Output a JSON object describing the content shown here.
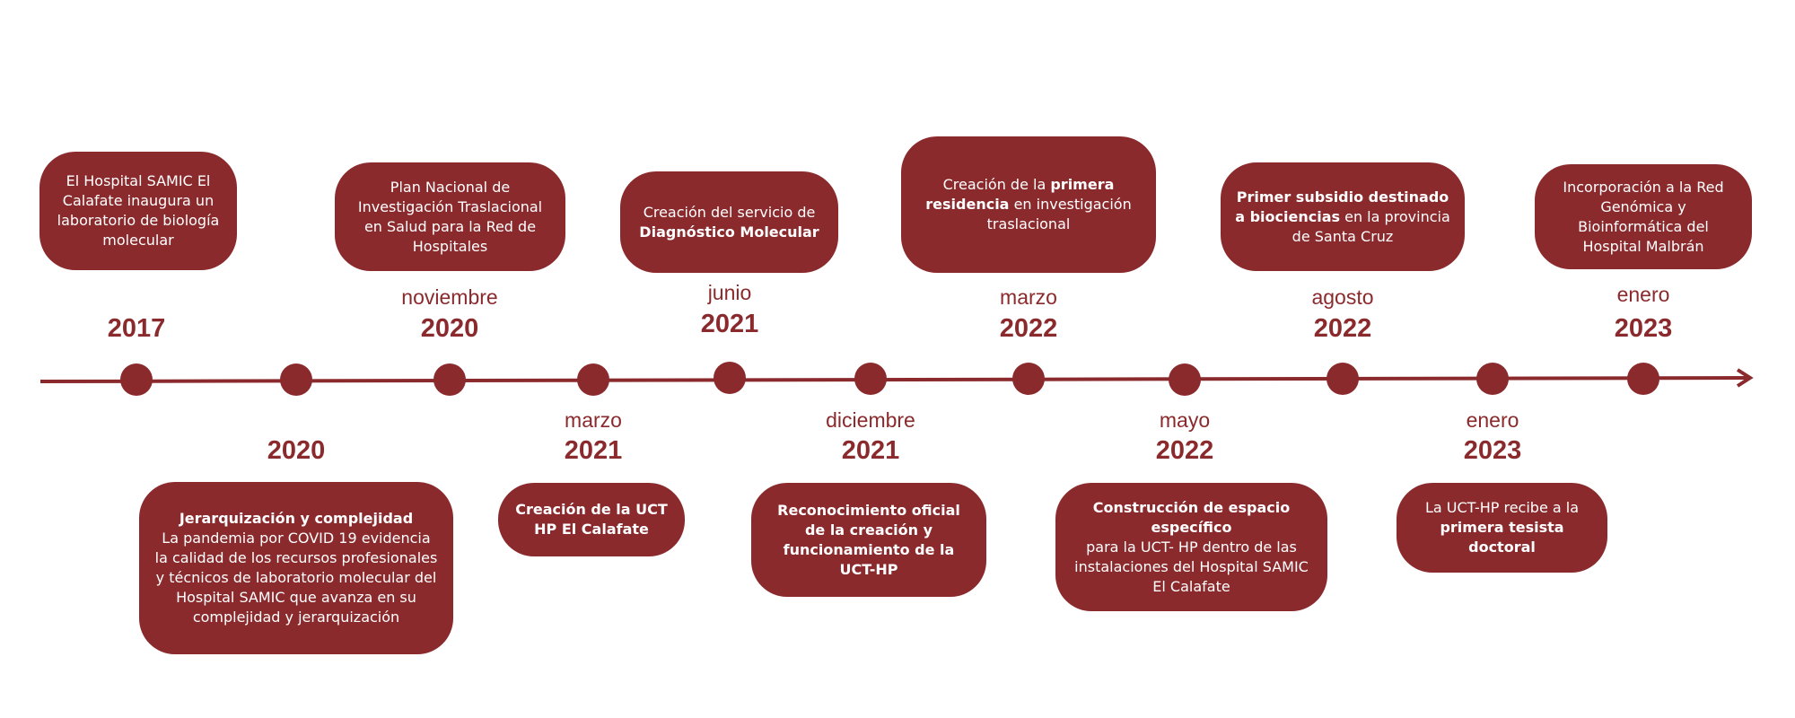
{
  "colors": {
    "accent": "#8b2a2d",
    "background": "#ffffff",
    "card_text": "#ffffff"
  },
  "events": [
    {
      "month": "",
      "year": "2017",
      "text": [
        {
          "t": "El Hospital SAMIC El Calafate inaugura un laboratorio de biología molecular",
          "b": false
        }
      ]
    },
    {
      "month": "",
      "year": "2020",
      "text": [
        {
          "t": "Jerarquización y complejidad",
          "b": true,
          "br": true
        },
        {
          "t": "La pandemia por COVID 19 evidencia la calidad de los recursos profesionales y técnicos de laboratorio molecular del Hospital SAMIC que avanza en su complejidad y jerarquización",
          "b": false
        }
      ]
    },
    {
      "month": "noviembre",
      "year": "2020",
      "text": [
        {
          "t": "Plan Nacional de Investigación Traslacional en Salud para la Red de Hospitales",
          "b": false
        }
      ]
    },
    {
      "month": "marzo",
      "year": "2021",
      "text": [
        {
          "t": "Creación de la UCT HP El Calafate",
          "b": true
        }
      ]
    },
    {
      "month": "junio",
      "year": "2021",
      "text": [
        {
          "t": "Creación del servicio de ",
          "b": false
        },
        {
          "t": "Diagnóstico Molecular",
          "b": true
        }
      ]
    },
    {
      "month": "diciembre",
      "year": "2021",
      "text": [
        {
          "t": "Reconocimiento oficial de la creación y funcionamiento de la UCT-HP",
          "b": true
        }
      ]
    },
    {
      "month": "marzo",
      "year": "2022",
      "text": [
        {
          "t": "Creación de la ",
          "b": false
        },
        {
          "t": "primera residencia",
          "b": true
        },
        {
          "t": " en investigación traslacional",
          "b": false
        }
      ]
    },
    {
      "month": "mayo",
      "year": "2022",
      "text": [
        {
          "t": "Construcción de espacio específico",
          "b": true,
          "br": true
        },
        {
          "t": "para la UCT- HP dentro de las instalaciones del Hospital SAMIC El Calafate",
          "b": false
        }
      ]
    },
    {
      "month": "agosto",
      "year": "2022",
      "text": [
        {
          "t": "Primer subsidio destinado a biociencias",
          "b": true
        },
        {
          "t": " en la provincia de Santa Cruz",
          "b": false
        }
      ]
    },
    {
      "month": "enero",
      "year": "2023",
      "text": [
        {
          "t": "La UCT-HP recibe a la ",
          "b": false
        },
        {
          "t": "primera tesista doctoral",
          "b": true
        }
      ]
    },
    {
      "month": "enero",
      "year": "2023",
      "text": [
        {
          "t": "Incorporación a la Red Genómica y Bioinformática del Hospital Malbrán",
          "b": false
        }
      ]
    }
  ]
}
